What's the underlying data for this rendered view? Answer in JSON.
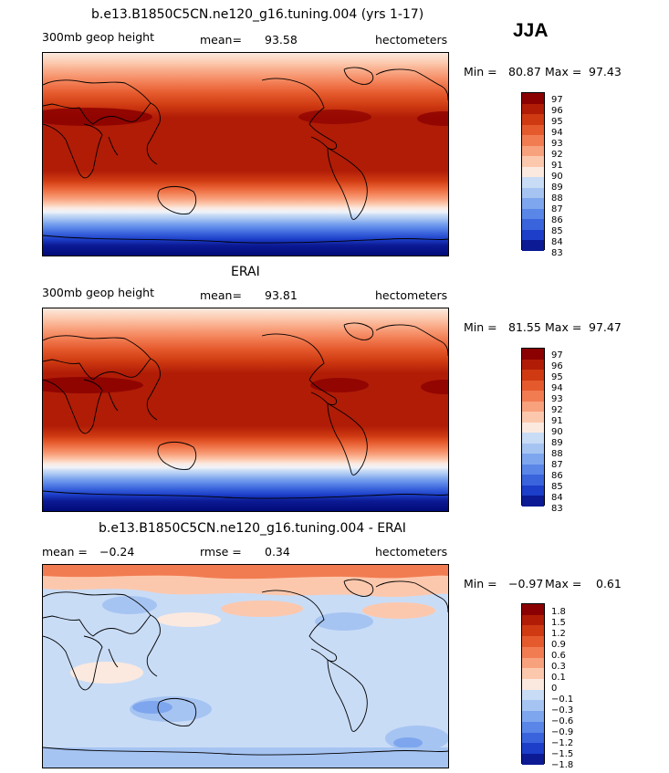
{
  "season": "JJA",
  "panels": [
    {
      "title": "b.e13.B1850C5CN.ne120_g16.tuning.004 (yrs 1-17)",
      "variable": "300mb geop height",
      "mean_label": "mean=",
      "mean_value": "93.58",
      "units": "hectometers",
      "min_label": "Min =",
      "min_value": "80.87",
      "max_label": "Max =",
      "max_value": "97.43",
      "colorbar_labels": [
        "97",
        "96",
        "95",
        "94",
        "93",
        "92",
        "91",
        "90",
        "89",
        "88",
        "87",
        "86",
        "85",
        "84",
        "83"
      ]
    },
    {
      "title": "ERAI",
      "variable": "300mb geop height",
      "mean_label": "mean=",
      "mean_value": "93.81",
      "units": "hectometers",
      "min_label": "Min =",
      "min_value": "81.55",
      "max_label": "Max =",
      "max_value": "97.47",
      "colorbar_labels": [
        "97",
        "96",
        "95",
        "94",
        "93",
        "92",
        "91",
        "90",
        "89",
        "88",
        "87",
        "86",
        "85",
        "84",
        "83"
      ]
    },
    {
      "title": "b.e13.B1850C5CN.ne120_g16.tuning.004 - ERAI",
      "mean_label": "mean =",
      "mean_value": "−0.24",
      "rmse_label": "rmse =",
      "rmse_value": "0.34",
      "units": "hectometers",
      "min_label": "Min =",
      "min_value": "−0.97",
      "max_label": "Max =",
      "max_value": "0.61",
      "colorbar_labels": [
        "1.8",
        "1.5",
        "1.2",
        "0.9",
        "0.6",
        "0.3",
        "0.1",
        "0",
        "−0.1",
        "−0.3",
        "−0.6",
        "−0.9",
        "−1.2",
        "−1.5",
        "−1.8"
      ]
    }
  ],
  "colors": {
    "scale": [
      "#8b0000",
      "#b01c06",
      "#cf3a12",
      "#e55a2d",
      "#f27c52",
      "#f8a17d",
      "#fcc8ad",
      "#fbe9df",
      "#f0f3fa",
      "#c9dcf6",
      "#a6c4f2",
      "#7ea6ee",
      "#5a86e8",
      "#3a64dc",
      "#1c3ec9",
      "#0c1a94",
      "#000a78"
    ],
    "land_outline": "#000000"
  }
}
